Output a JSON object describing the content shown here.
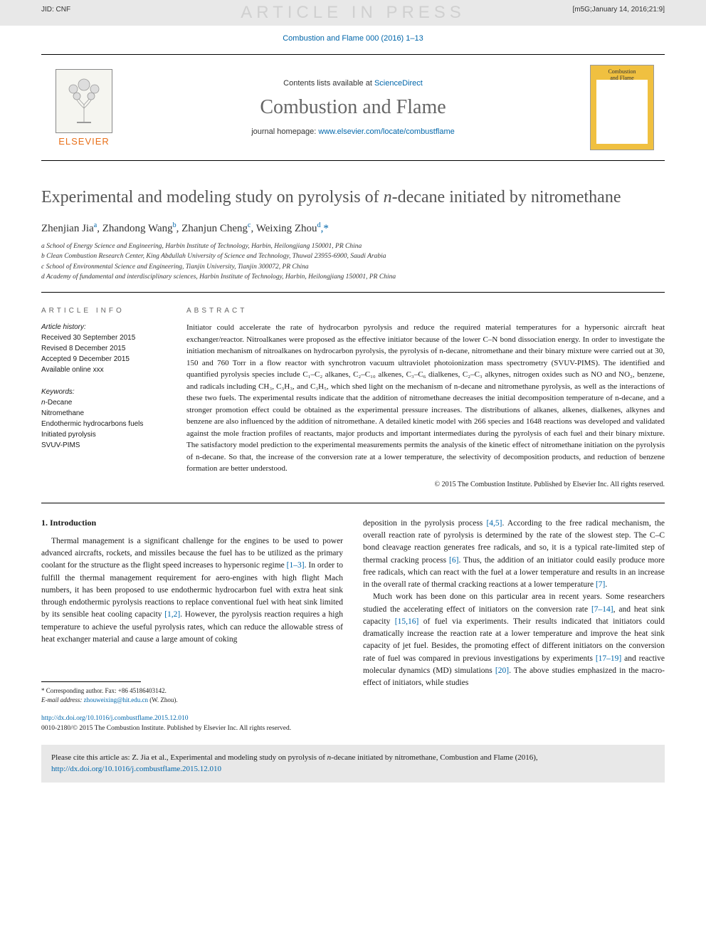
{
  "band": {
    "watermark": "ARTICLE IN PRESS",
    "jid": "JID: CNF",
    "stamp": "[m5G;January 14, 2016;21:9]"
  },
  "issue_link": "Combustion and Flame 000 (2016) 1–13",
  "header": {
    "contents_prefix": "Contents lists available at ",
    "sciencedirect": "ScienceDirect",
    "journal": "Combustion and Flame",
    "homepage_prefix": "journal homepage: ",
    "homepage_url": "www.elsevier.com/locate/combustflame",
    "elsevier": "ELSEVIER",
    "cover_top": "Combustion",
    "cover_bot": "and Flame"
  },
  "title": {
    "pre": "Experimental and modeling study on pyrolysis of ",
    "ital": "n",
    "post": "-decane initiated by nitromethane"
  },
  "authors_html": "Zhenjian Jia",
  "authors": [
    {
      "name": "Zhenjian Jia",
      "sup": "a"
    },
    {
      "name": "Zhandong Wang",
      "sup": "b"
    },
    {
      "name": "Zhanjun Cheng",
      "sup": "c"
    },
    {
      "name": "Weixing Zhou",
      "sup": "d,*"
    }
  ],
  "affils": [
    "a School of Energy Science and Engineering, Harbin Institute of Technology, Harbin, Heilongjiang 150001, PR China",
    "b Clean Combustion Research Center, King Abdullah University of Science and Technology, Thuwal 23955-6900, Saudi Arabia",
    "c School of Environmental Science and Engineering, Tianjin University, Tianjin 300072, PR China",
    "d Academy of fundamental and interdisciplinary sciences, Harbin Institute of Technology, Harbin, Heilongjiang 150001, PR China"
  ],
  "meta": {
    "info_label": "ARTICLE INFO",
    "abs_label": "ABSTRACT",
    "history_head": "Article history:",
    "history": [
      "Received 30 September 2015",
      "Revised 8 December 2015",
      "Accepted 9 December 2015",
      "Available online xxx"
    ],
    "kw_head": "Keywords:",
    "keywords": [
      "n-Decane",
      "Nitromethane",
      "Endothermic hydrocarbons fuels",
      "Initiated pyrolysis",
      "SVUV-PIMS"
    ]
  },
  "abstract": "Initiator could accelerate the rate of hydrocarbon pyrolysis and reduce the required material temperatures for a hypersonic aircraft heat exchanger/reactor. Nitroalkanes were proposed as the effective initiator because of the lower C–N bond dissociation energy. In order to investigate the initiation mechanism of nitroalkanes on hydrocarbon pyrolysis, the pyrolysis of n-decane, nitromethane and their binary mixture were carried out at 30, 150 and 760 Torr in a flow reactor with synchrotron vacuum ultraviolet photoionization mass spectrometry (SVUV-PIMS). The identified and quantified pyrolysis species include C₁–C₂ alkanes, C₂–C₁₀ alkenes, C₃–C₆ dialkenes, C₂–C₃ alkynes, nitrogen oxides such as NO and NO₂, benzene, and radicals including CH₃, C₃H₃, and C₃H₅, which shed light on the mechanism of n-decane and nitromethane pyrolysis, as well as the interactions of these two fuels. The experimental results indicate that the addition of nitromethane decreases the initial decomposition temperature of n-decane, and a stronger promotion effect could be obtained as the experimental pressure increases. The distributions of alkanes, alkenes, dialkenes, alkynes and benzene are also influenced by the addition of nitromethane. A detailed kinetic model with 266 species and 1648 reactions was developed and validated against the mole fraction profiles of reactants, major products and important intermediates during the pyrolysis of each fuel and their binary mixture. The satisfactory model prediction to the experimental measurements permits the analysis of the kinetic effect of nitromethane initiation on the pyrolysis of n-decane. So that, the increase of the conversion rate at a lower temperature, the selectivity of decomposition products, and reduction of benzene formation are better understood.",
  "copyright": "© 2015 The Combustion Institute. Published by Elsevier Inc. All rights reserved.",
  "body": {
    "h1": "1. Introduction",
    "col1_p1_a": "Thermal management is a significant challenge for the engines to be used to power advanced aircrafts, rockets, and missiles because the fuel has to be utilized as the primary coolant for the structure as the flight speed increases to hypersonic regime ",
    "ref1": "[1–3]",
    "col1_p1_b": ". In order to fulfill the thermal management requirement for aero-engines with high flight Mach numbers, it has been proposed to use endothermic hydrocarbon fuel with extra heat sink through endothermic pyrolysis reactions to replace conventional fuel with heat sink limited by its sensible heat cooling capacity ",
    "ref2": "[1,2]",
    "col1_p1_c": ". However, the pyrolysis reaction requires a high temperature to achieve the useful pyrolysis rates, which can reduce the allowable stress of heat exchanger material and cause a large amount of coking",
    "col2_p1_a": "deposition in the pyrolysis process ",
    "ref3": "[4,5]",
    "col2_p1_b": ". According to the free radical mechanism, the overall reaction rate of pyrolysis is determined by the rate of the slowest step. The C–C bond cleavage reaction generates free radicals, and so, it is a typical rate-limited step of thermal cracking process ",
    "ref4": "[6]",
    "col2_p1_c": ". Thus, the addition of an initiator could easily produce more free radicals, which can react with the fuel at a lower temperature and results in an increase in the overall rate of thermal cracking reactions at a lower temperature ",
    "ref5": "[7]",
    "col2_p1_d": ".",
    "col2_p2_a": "Much work has been done on this particular area in recent years. Some researchers studied the accelerating effect of initiators on the conversion rate ",
    "ref6": "[7–14]",
    "col2_p2_b": ", and heat sink capacity ",
    "ref7": "[15,16]",
    "col2_p2_c": " of fuel via experiments. Their results indicated that initiators could dramatically increase the reaction rate at a lower temperature and improve the heat sink capacity of jet fuel. Besides, the promoting effect of different initiators on the conversion rate of fuel was compared in previous investigations by experiments ",
    "ref8": "[17–19]",
    "col2_p2_d": " and reactive molecular dynamics (MD) simulations ",
    "ref9": "[20]",
    "col2_p2_e": ". The above studies emphasized in the macro-effect of initiators, while studies"
  },
  "footnote": {
    "corr": "* Corresponding author. Fax: +86 45186403142.",
    "email_lbl": "E-mail address: ",
    "email": "zhouweixing@hit.edu.cn",
    "email_tail": " (W. Zhou)."
  },
  "doi": {
    "url": "http://dx.doi.org/10.1016/j.combustflame.2015.12.010",
    "line2": "0010-2180/© 2015 The Combustion Institute. Published by Elsevier Inc. All rights reserved."
  },
  "citebox": {
    "text_a": "Please cite this article as: Z. Jia et al., Experimental and modeling study on pyrolysis of ",
    "ital": "n",
    "text_b": "-decane initiated by nitromethane, Combustion and Flame (2016), ",
    "doi": "http://dx.doi.org/10.1016/j.combustflame.2015.12.010"
  },
  "colors": {
    "link": "#0066aa",
    "gray_band": "#e8e8e8",
    "title_gray": "#545454",
    "elsevier_orange": "#e8701a",
    "cover_yellow": "#f0c040"
  }
}
